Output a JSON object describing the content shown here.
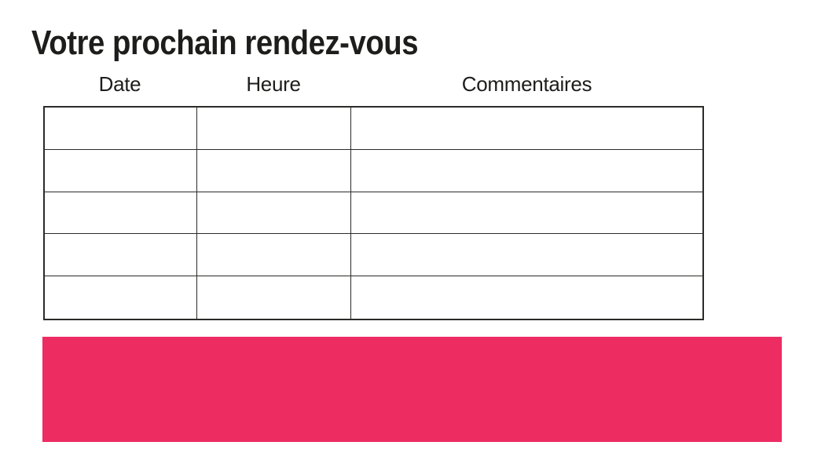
{
  "page": {
    "background_color": "#ffffff"
  },
  "header": {
    "title": "Votre prochain rendez-vous",
    "title_color": "#1d1d1b"
  },
  "appointment_table": {
    "columns": [
      {
        "label": "Date"
      },
      {
        "label": "Heure"
      },
      {
        "label": "Commentaires"
      }
    ],
    "rows": [
      [
        "",
        "",
        ""
      ],
      [
        "",
        "",
        ""
      ],
      [
        "",
        "",
        ""
      ],
      [
        "",
        "",
        ""
      ],
      [
        "",
        "",
        ""
      ]
    ],
    "border_color": "#2b2b29"
  },
  "banner": {
    "background_color": "#ED2C62",
    "label": ""
  }
}
